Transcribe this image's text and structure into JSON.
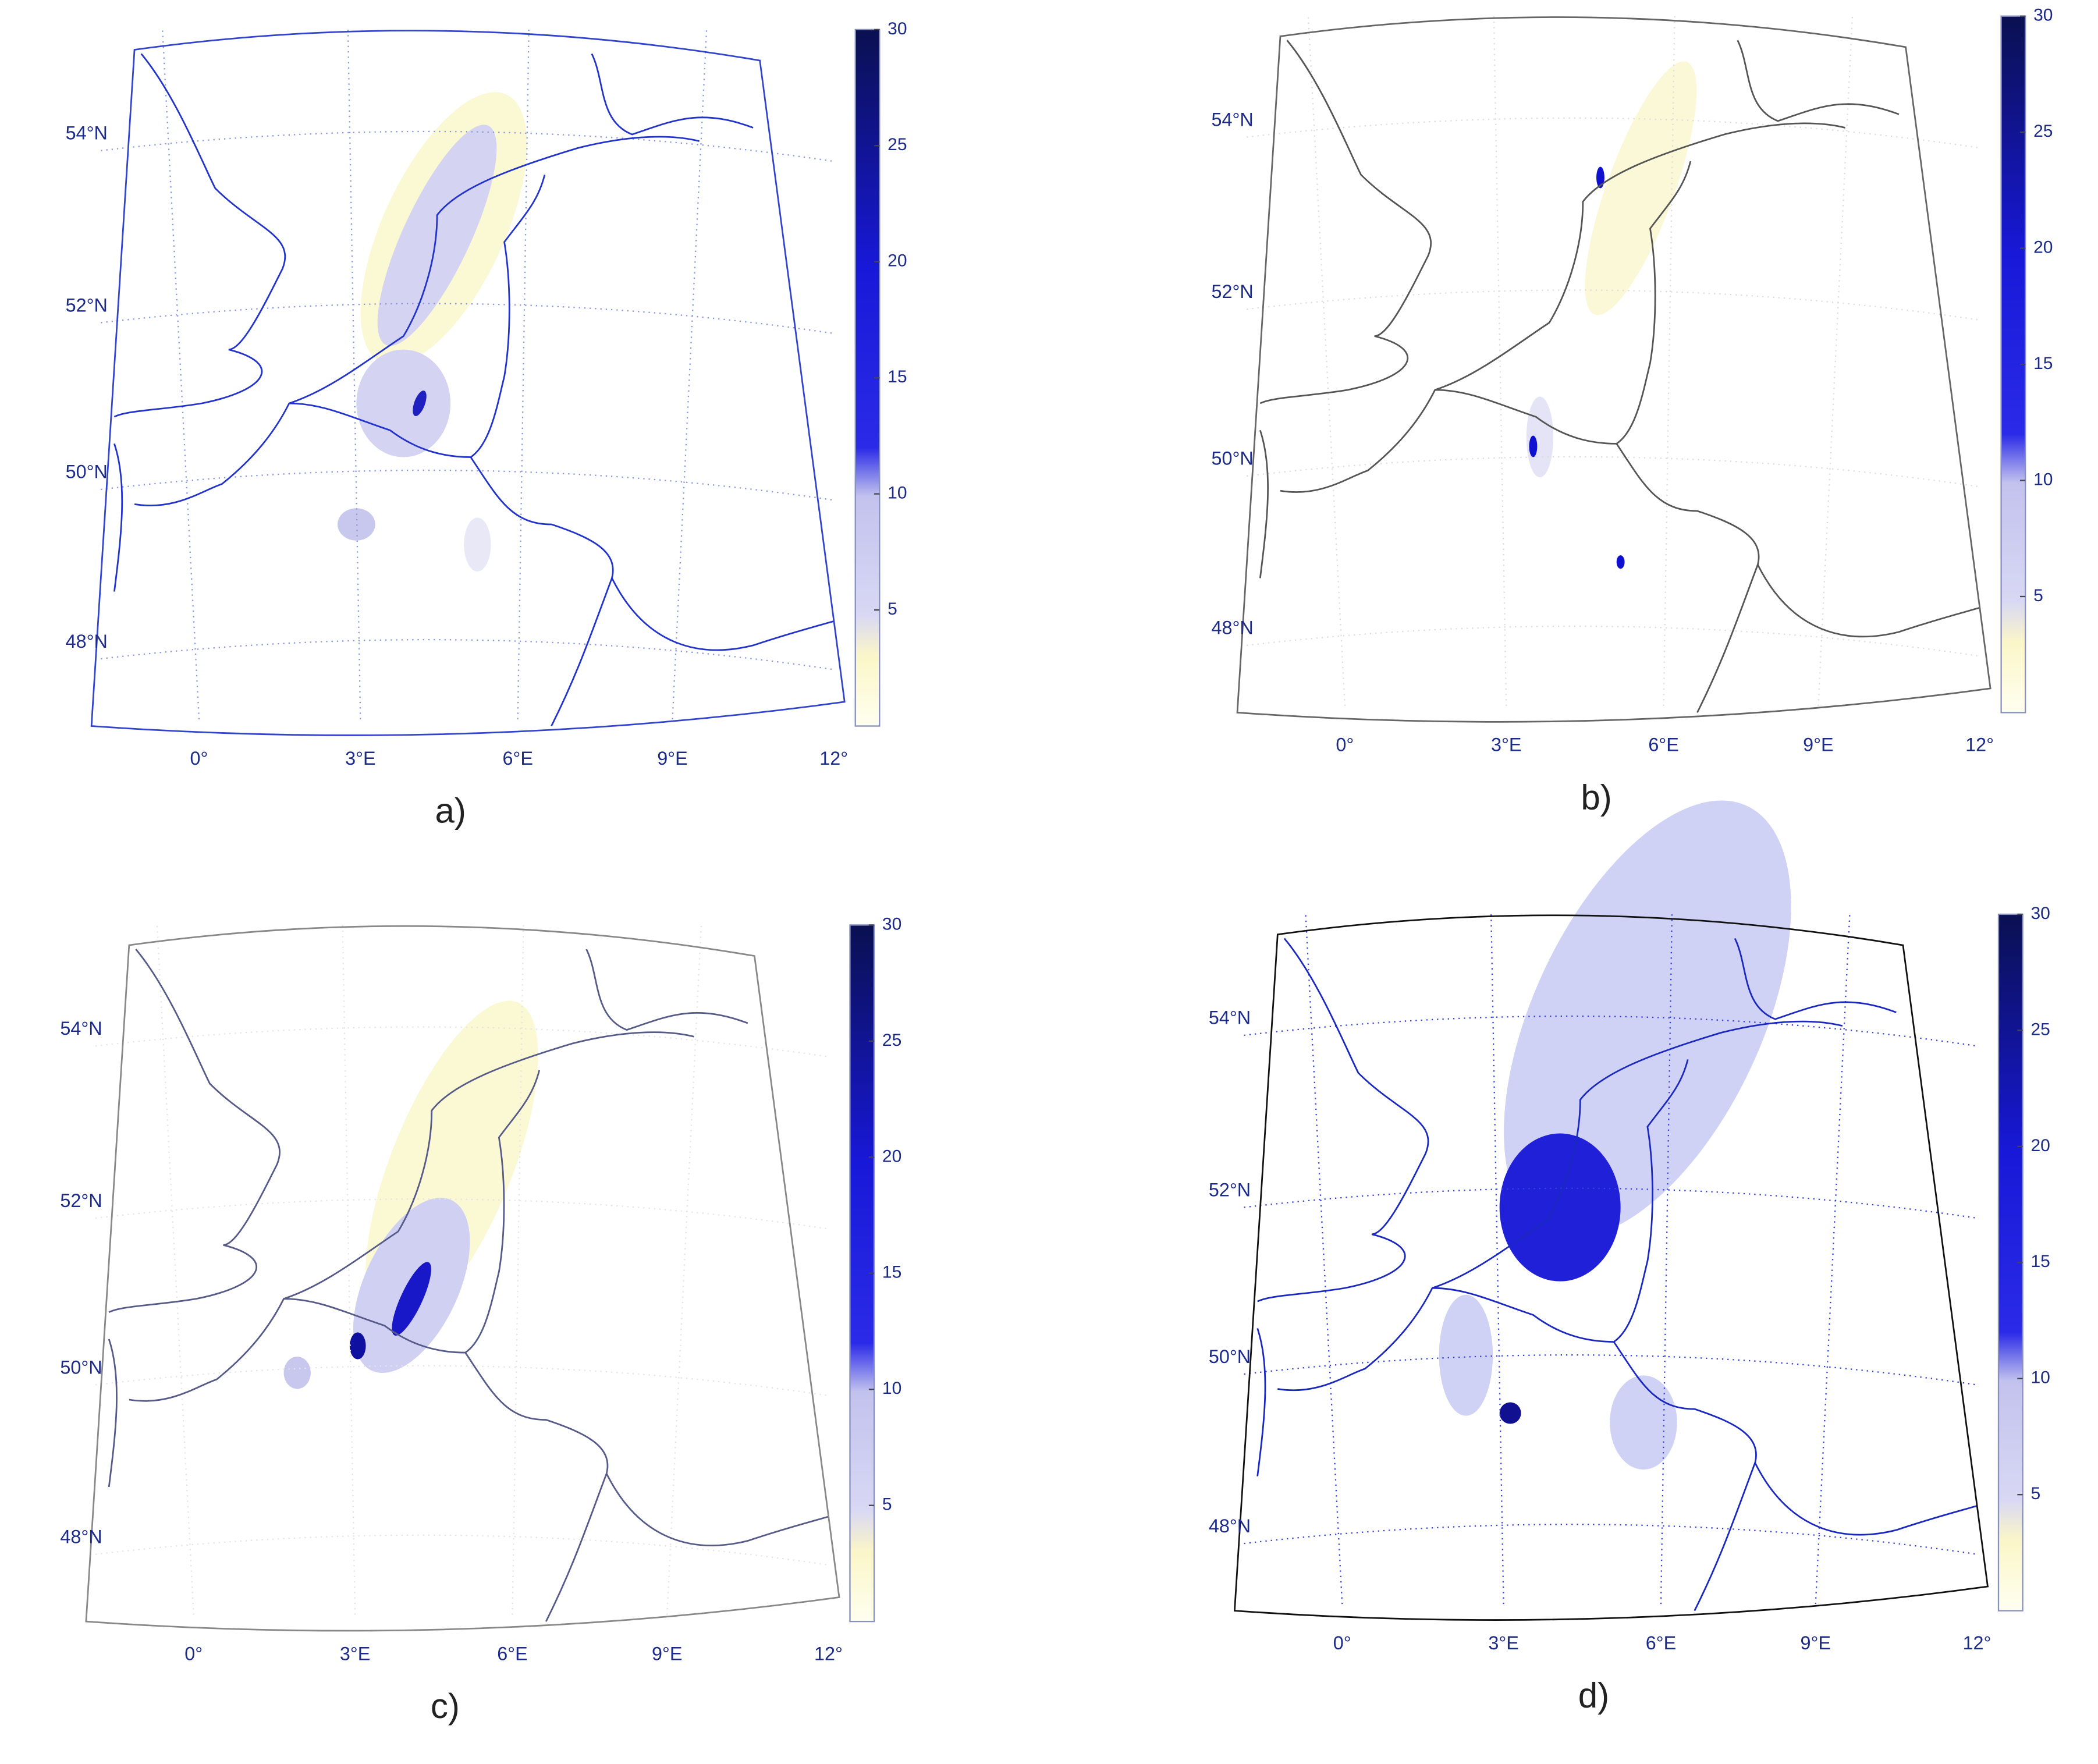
{
  "panels": [
    {
      "label": "a)",
      "lat_labels": [
        "54°N",
        "52°N",
        "50°N",
        "48°N"
      ],
      "lon_labels": [
        "0°",
        "3°E",
        "6°E",
        "9°E",
        "12°"
      ],
      "colorbar": {
        "lim": [
          0,
          30
        ],
        "ticks": [
          5,
          10,
          15,
          20,
          25,
          30
        ]
      }
    },
    {
      "label": "b)",
      "lat_labels": [
        "54°N",
        "52°N",
        "50°N",
        "48°N"
      ],
      "lon_labels": [
        "0°",
        "3°E",
        "6°E",
        "9°E",
        "12°"
      ],
      "colorbar": {
        "lim": [
          0,
          30
        ],
        "ticks": [
          5,
          10,
          15,
          20,
          25,
          30
        ]
      }
    },
    {
      "label": "c)",
      "lat_labels": [
        "54°N",
        "52°N",
        "50°N",
        "48°N"
      ],
      "lon_labels": [
        "0°",
        "3°E",
        "6°E",
        "9°E",
        "12°"
      ],
      "colorbar": {
        "lim": [
          0,
          30
        ],
        "ticks": [
          5,
          10,
          15,
          20,
          25,
          30
        ]
      }
    },
    {
      "label": "d)",
      "lat_labels": [
        "54°N",
        "52°N",
        "50°N",
        "48°N"
      ],
      "lon_labels": [
        "0°",
        "3°E",
        "6°E",
        "9°E",
        "12°"
      ],
      "colorbar": {
        "lim": [
          0,
          30
        ],
        "ticks": [
          5,
          10,
          15,
          20,
          25,
          30
        ]
      }
    }
  ]
}
